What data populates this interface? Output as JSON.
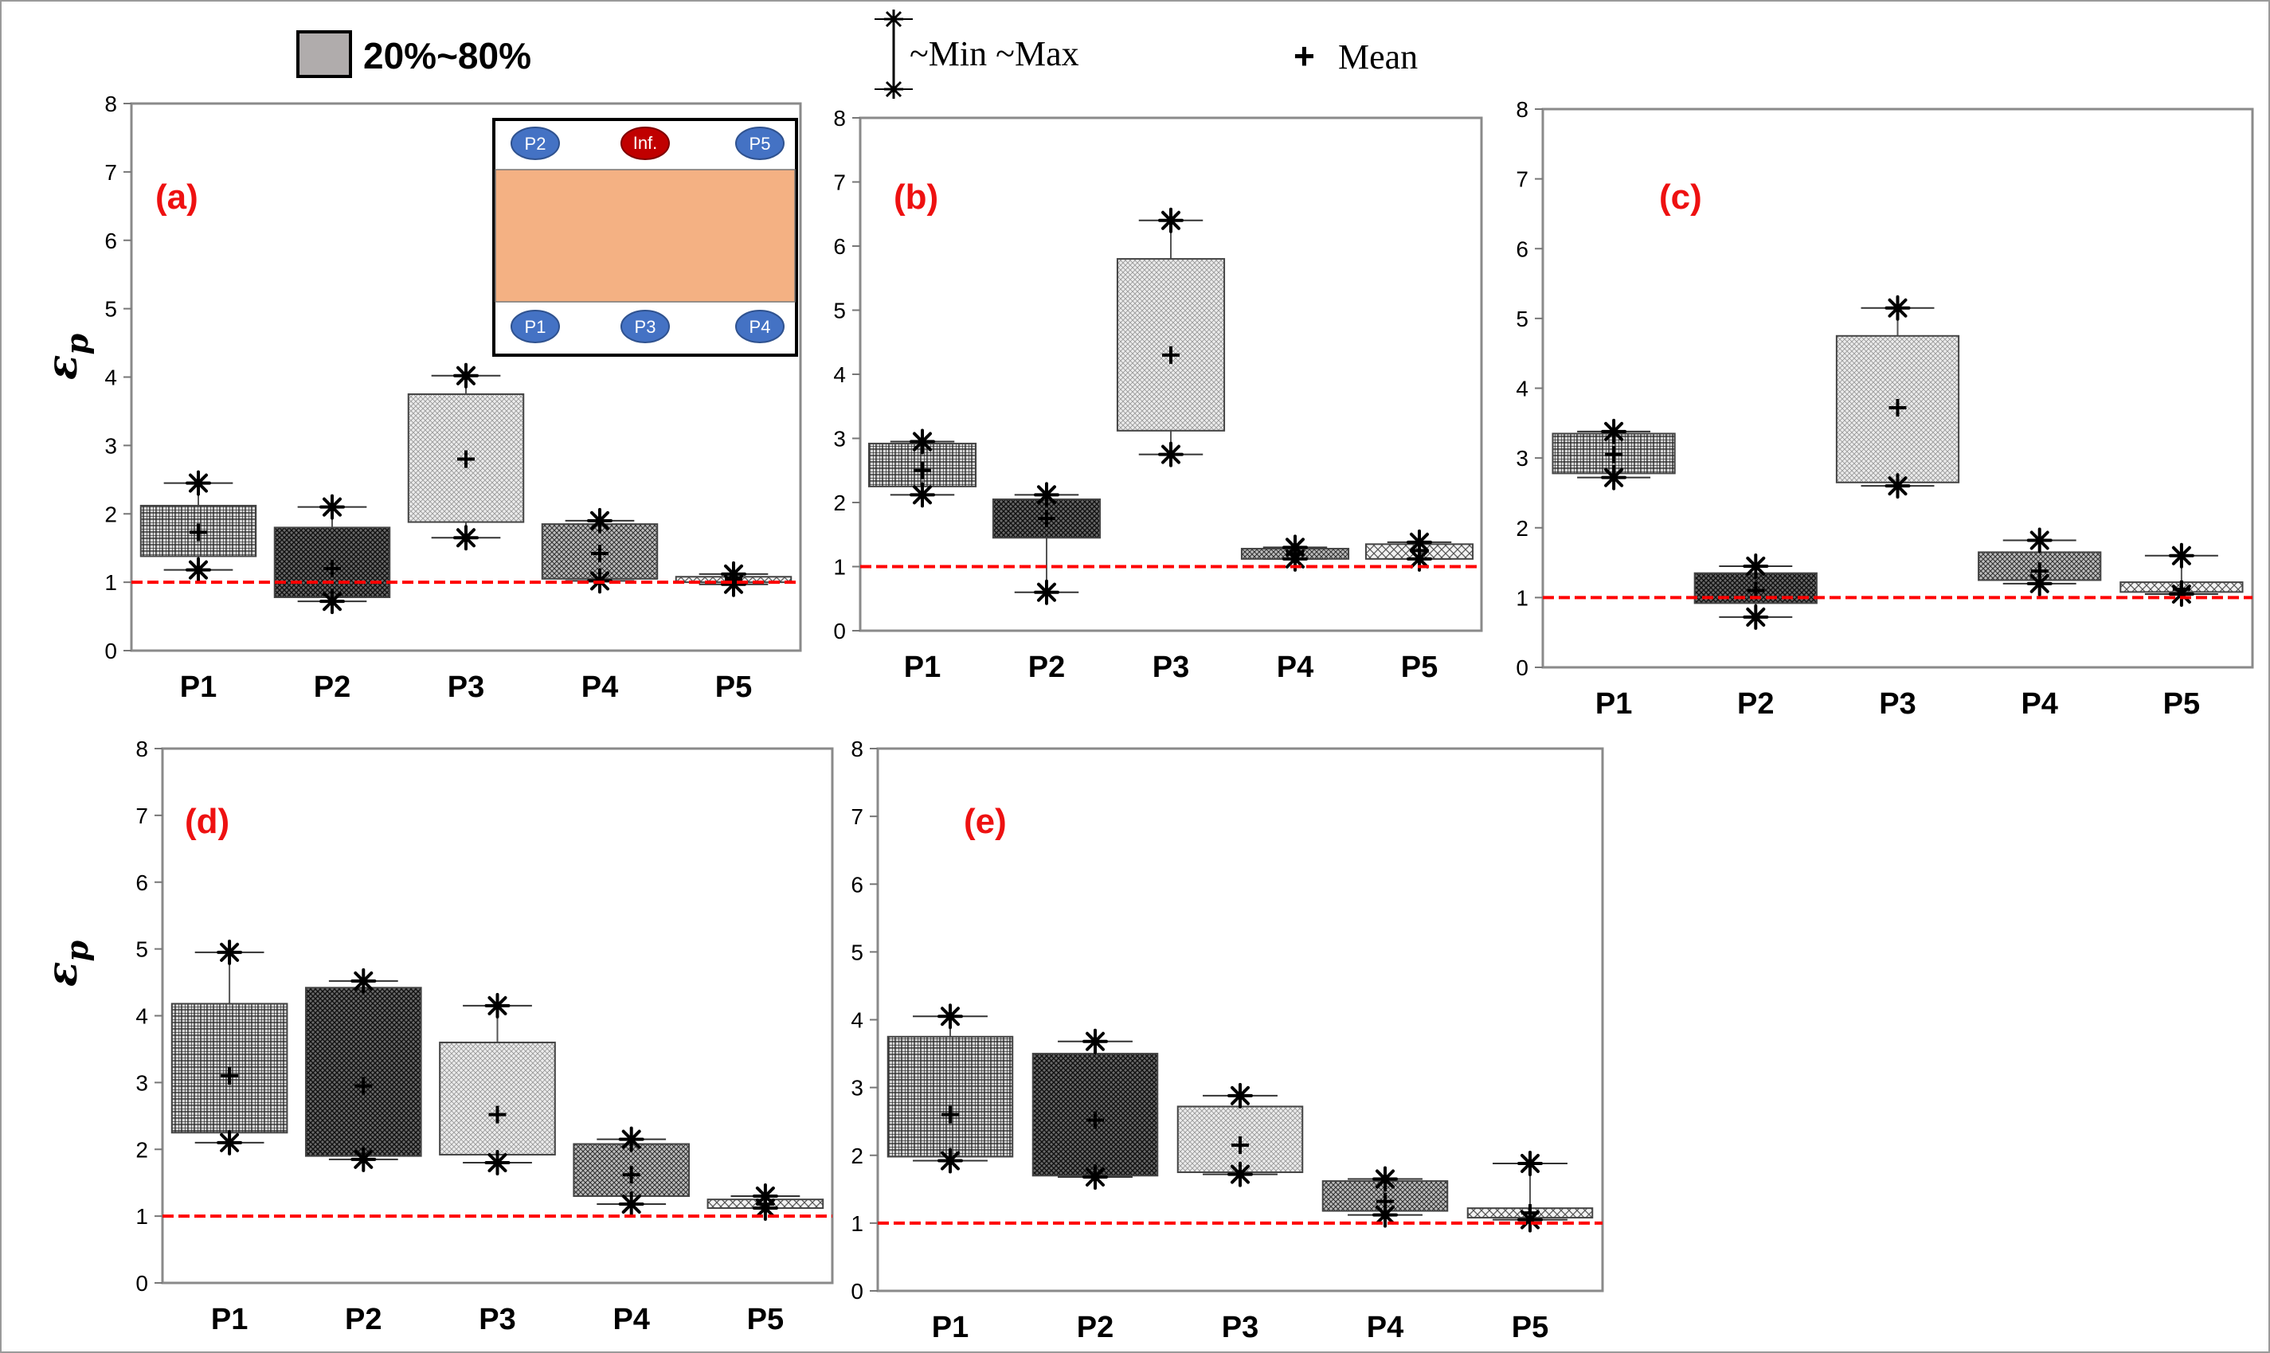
{
  "legend": {
    "box_label": "20%~80%",
    "range_label": "~Min ~Max",
    "mean_label": "Mean",
    "mean_symbol": "+"
  },
  "y_axis_symbol": "ε",
  "y_axis_subscript": "p",
  "inset": {
    "top_labels": [
      "P2",
      "Inf.",
      "P5"
    ],
    "bottom_labels": [
      "P1",
      "P3",
      "P4"
    ],
    "slab_color": "#f4b183",
    "probe_color": "#4472c4",
    "inf_color": "#c00000"
  },
  "colors": {
    "reference_line": "#ff0000",
    "panel_label": "#ee1111"
  },
  "chart_data": [
    {
      "type": "box",
      "panel": "(a)",
      "categories": [
        "P1",
        "P2",
        "P3",
        "P4",
        "P5"
      ],
      "yticks": [
        "0",
        "1",
        "2",
        "3",
        "4",
        "5",
        "6",
        "7",
        "8"
      ],
      "ylim": [
        0,
        8
      ],
      "reference_line": 1,
      "boxes": [
        {
          "q20": 1.38,
          "q80": 2.12,
          "mean": 1.73,
          "min": 1.18,
          "max": 2.45,
          "lo_star": 1.18,
          "hi_star": 2.45
        },
        {
          "q20": 0.78,
          "q80": 1.8,
          "mean": 1.2,
          "min": 0.72,
          "max": 2.1,
          "lo_star": 0.72,
          "hi_star": 2.1
        },
        {
          "q20": 1.88,
          "q80": 3.75,
          "mean": 2.8,
          "min": 1.65,
          "max": 4.02,
          "lo_star": 1.65,
          "hi_star": 4.02
        },
        {
          "q20": 1.05,
          "q80": 1.85,
          "mean": 1.42,
          "min": 1.02,
          "max": 1.9,
          "lo_star": 1.02,
          "hi_star": 1.9
        },
        {
          "q20": 1.0,
          "q80": 1.08,
          "mean": 1.04,
          "min": 0.97,
          "max": 1.12,
          "lo_star": 0.97,
          "hi_star": 1.12
        }
      ]
    },
    {
      "type": "box",
      "panel": "(b)",
      "categories": [
        "P1",
        "P2",
        "P3",
        "P4",
        "P5"
      ],
      "yticks": [
        "0",
        "1",
        "2",
        "3",
        "4",
        "5",
        "6",
        "7",
        "8"
      ],
      "ylim": [
        0,
        8
      ],
      "reference_line": 1,
      "boxes": [
        {
          "q20": 2.25,
          "q80": 2.92,
          "mean": 2.5,
          "min": 2.12,
          "max": 2.95,
          "lo_star": 2.12,
          "hi_star": 2.95
        },
        {
          "q20": 1.45,
          "q80": 2.05,
          "mean": 1.75,
          "min": 0.6,
          "max": 2.12,
          "lo_star": 0.6,
          "hi_star": 2.12
        },
        {
          "q20": 3.12,
          "q80": 5.8,
          "mean": 4.3,
          "min": 2.75,
          "max": 6.4,
          "lo_star": 2.75,
          "hi_star": 6.4
        },
        {
          "q20": 1.12,
          "q80": 1.28,
          "mean": 1.2,
          "min": 1.12,
          "max": 1.3,
          "lo_star": 1.12,
          "hi_star": 1.3
        },
        {
          "q20": 1.12,
          "q80": 1.35,
          "mean": 1.25,
          "min": 1.12,
          "max": 1.38,
          "lo_star": 1.12,
          "hi_star": 1.38
        }
      ]
    },
    {
      "type": "box",
      "panel": "(c)",
      "categories": [
        "P1",
        "P2",
        "P3",
        "P4",
        "P5"
      ],
      "yticks": [
        "0",
        "1",
        "2",
        "3",
        "4",
        "5",
        "6",
        "7",
        "8"
      ],
      "ylim": [
        0,
        8
      ],
      "reference_line": 1,
      "boxes": [
        {
          "q20": 2.78,
          "q80": 3.35,
          "mean": 3.05,
          "min": 2.72,
          "max": 3.38,
          "lo_star": 2.72,
          "hi_star": 3.38
        },
        {
          "q20": 0.92,
          "q80": 1.35,
          "mean": 1.1,
          "min": 0.72,
          "max": 1.45,
          "lo_star": 0.72,
          "hi_star": 1.45
        },
        {
          "q20": 2.65,
          "q80": 4.75,
          "mean": 3.72,
          "min": 2.6,
          "max": 5.15,
          "lo_star": 2.6,
          "hi_star": 5.15
        },
        {
          "q20": 1.25,
          "q80": 1.65,
          "mean": 1.38,
          "min": 1.2,
          "max": 1.82,
          "lo_star": 1.2,
          "hi_star": 1.82
        },
        {
          "q20": 1.08,
          "q80": 1.22,
          "mean": 1.12,
          "min": 1.05,
          "max": 1.6,
          "lo_star": 1.05,
          "hi_star": 1.6
        }
      ]
    },
    {
      "type": "box",
      "panel": "(d)",
      "categories": [
        "P1",
        "P2",
        "P3",
        "P4",
        "P5"
      ],
      "yticks": [
        "0",
        "1",
        "2",
        "3",
        "4",
        "5",
        "6",
        "7",
        "8"
      ],
      "ylim": [
        0,
        8
      ],
      "reference_line": 1,
      "boxes": [
        {
          "q20": 2.25,
          "q80": 4.18,
          "mean": 3.1,
          "min": 2.1,
          "max": 4.95,
          "lo_star": 2.1,
          "hi_star": 4.95
        },
        {
          "q20": 1.9,
          "q80": 4.42,
          "mean": 2.95,
          "min": 1.85,
          "max": 4.52,
          "lo_star": 1.85,
          "hi_star": 4.52
        },
        {
          "q20": 1.92,
          "q80": 3.6,
          "mean": 2.52,
          "min": 1.8,
          "max": 4.15,
          "lo_star": 1.8,
          "hi_star": 4.15
        },
        {
          "q20": 1.3,
          "q80": 2.08,
          "mean": 1.62,
          "min": 1.18,
          "max": 2.15,
          "lo_star": 1.18,
          "hi_star": 2.15
        },
        {
          "q20": 1.12,
          "q80": 1.25,
          "mean": 1.18,
          "min": 1.12,
          "max": 1.3,
          "lo_star": 1.12,
          "hi_star": 1.3
        }
      ]
    },
    {
      "type": "box",
      "panel": "(e)",
      "categories": [
        "P1",
        "P2",
        "P3",
        "P4",
        "P5"
      ],
      "yticks": [
        "0",
        "1",
        "2",
        "3",
        "4",
        "5",
        "6",
        "7",
        "8"
      ],
      "ylim": [
        0,
        8
      ],
      "reference_line": 1,
      "boxes": [
        {
          "q20": 1.98,
          "q80": 3.75,
          "mean": 2.6,
          "min": 1.92,
          "max": 4.05,
          "lo_star": 1.92,
          "hi_star": 4.05
        },
        {
          "q20": 1.7,
          "q80": 3.5,
          "mean": 2.52,
          "min": 1.68,
          "max": 3.68,
          "lo_star": 1.68,
          "hi_star": 3.68
        },
        {
          "q20": 1.75,
          "q80": 2.72,
          "mean": 2.15,
          "min": 1.72,
          "max": 2.88,
          "lo_star": 1.72,
          "hi_star": 2.88
        },
        {
          "q20": 1.18,
          "q80": 1.62,
          "mean": 1.32,
          "min": 1.12,
          "max": 1.65,
          "lo_star": 1.12,
          "hi_star": 1.65
        },
        {
          "q20": 1.08,
          "q80": 1.22,
          "mean": 1.15,
          "min": 1.05,
          "max": 1.88,
          "lo_star": 1.05,
          "hi_star": 1.88
        }
      ]
    }
  ]
}
